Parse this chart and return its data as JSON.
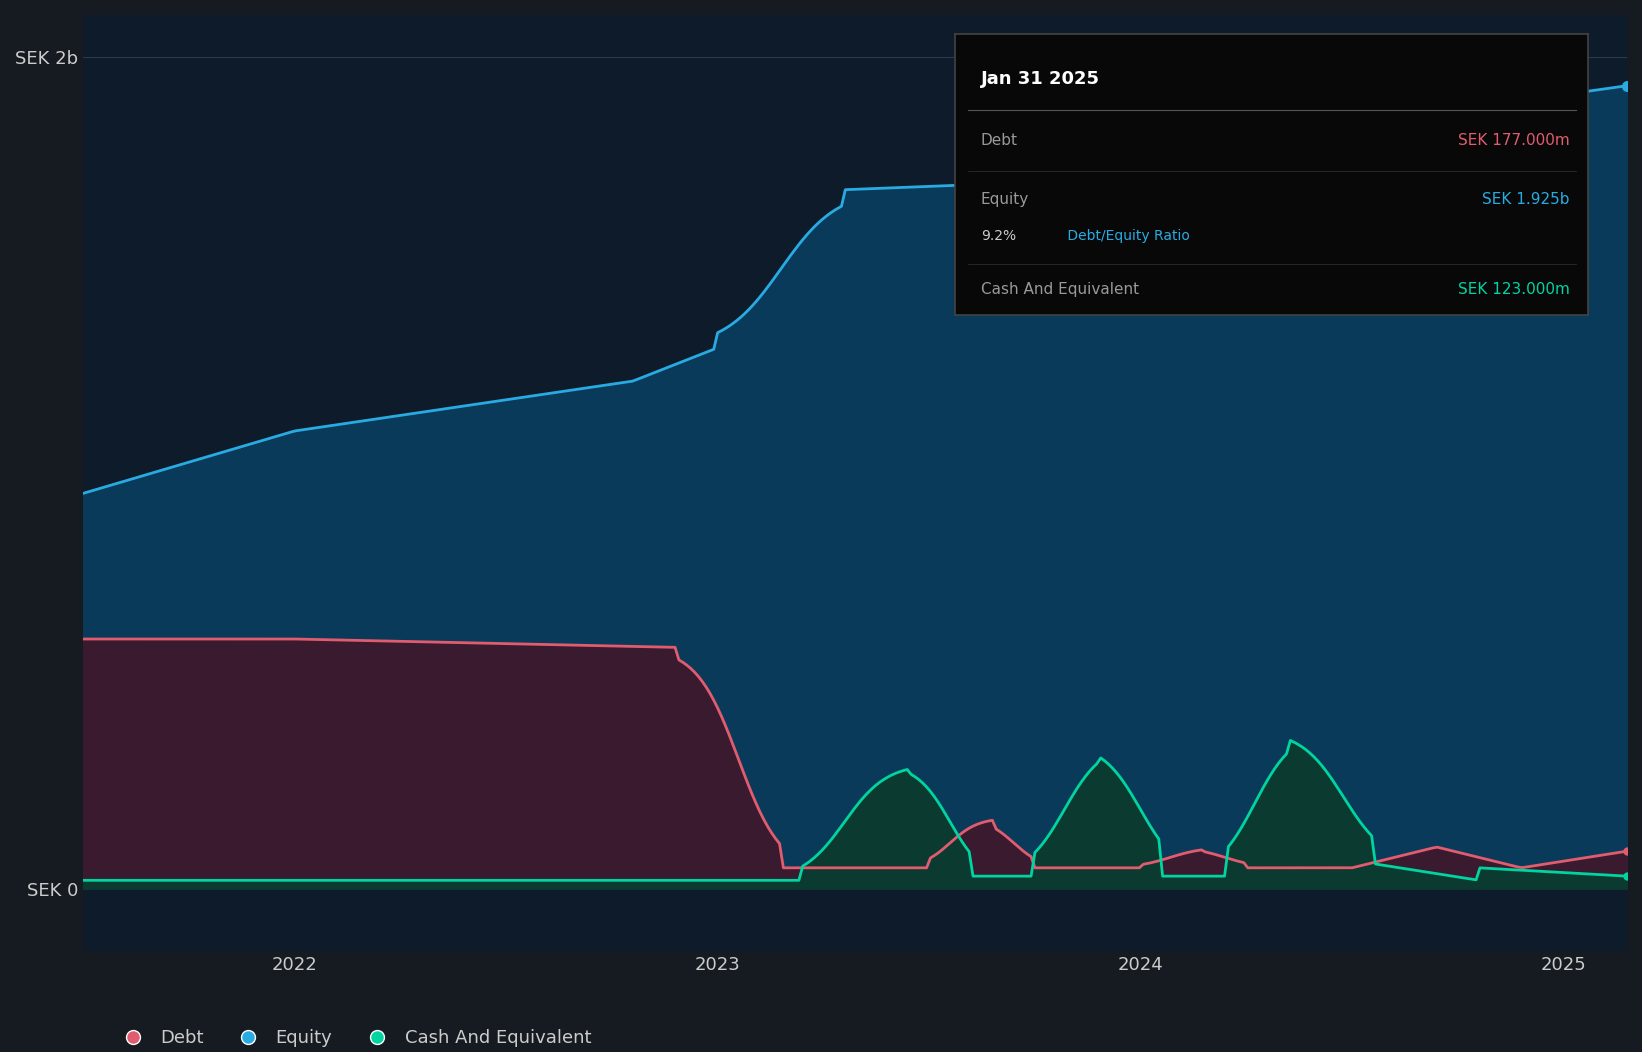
{
  "bg_color": "#161b22",
  "plot_bg_color": "#0d1b2a",
  "ylabel_top": "SEK 2b",
  "ylabel_bottom": "SEK 0",
  "x_ticks": [
    "2022",
    "2023",
    "2024",
    "2025"
  ],
  "tooltip_date": "Jan 31 2025",
  "tooltip_debt_label": "Debt",
  "tooltip_debt_value": "SEK 177.000m",
  "tooltip_equity_label": "Equity",
  "tooltip_equity_value": "SEK 1.925b",
  "tooltip_ratio_plain": "9.2%",
  "tooltip_ratio_colored": " Debt/Equity Ratio",
  "tooltip_cash_label": "Cash And Equivalent",
  "tooltip_cash_value": "SEK 123.000m",
  "legend_items": [
    "Debt",
    "Equity",
    "Cash And Equivalent"
  ],
  "equity_color": "#29abe2",
  "equity_fill": "#0a3a5a",
  "debt_color": "#e05c6e",
  "debt_fill": "#3a1a2e",
  "cash_color": "#00d4a0",
  "cash_fill": "#0a3a30",
  "grid_color": "#2a3a4a",
  "text_color": "#cccccc",
  "tooltip_bg": "#080808",
  "tooltip_border": "#444444"
}
